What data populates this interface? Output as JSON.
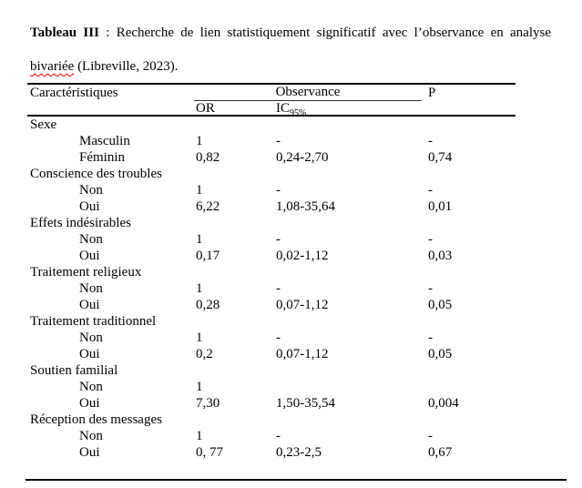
{
  "caption": {
    "bold": "Tableau III",
    "middle": " : Recherche de lien statistiquement significatif avec l’observance en analyse ",
    "misspelled": "bivariée",
    "tail": " (Libreville, 2023)."
  },
  "table": {
    "headers": {
      "characteristics": "Caractéristiques",
      "observance": "Observance",
      "or": "OR",
      "ic_base": "IC",
      "ic_sub": "95%",
      "p": "P"
    },
    "rows": [
      {
        "type": "group",
        "label": "Sexe",
        "or": "",
        "ic": "",
        "p": ""
      },
      {
        "type": "item",
        "label": "Masculin",
        "or": "1",
        "ic": "-",
        "p": "-"
      },
      {
        "type": "item",
        "label": "Féminin",
        "or": "0,82",
        "ic": "0,24-2,70",
        "p": "0,74"
      },
      {
        "type": "group",
        "label": "Conscience des troubles",
        "or": "",
        "ic": "",
        "p": ""
      },
      {
        "type": "item",
        "label": "Non",
        "or": "1",
        "ic": "-",
        "p": "-"
      },
      {
        "type": "item",
        "label": "Oui",
        "or": "6,22",
        "ic": "1,08-35,64",
        "p": "0,01"
      },
      {
        "type": "group",
        "label": "Effets indésirables",
        "or": "",
        "ic": "",
        "p": ""
      },
      {
        "type": "item",
        "label": "Non",
        "or": "1",
        "ic": "-",
        "p": "-"
      },
      {
        "type": "item",
        "label": "Oui",
        "or": "0,17",
        "ic": "0,02-1,12",
        "p": "0,03"
      },
      {
        "type": "group",
        "label": "Traitement religieux",
        "or": "",
        "ic": "",
        "p": ""
      },
      {
        "type": "item",
        "label": "Non",
        "or": "1",
        "ic": "-",
        "p": "-"
      },
      {
        "type": "item",
        "label": "Oui",
        "or": "0,28",
        "ic": "0,07-1,12",
        "p": "0,05"
      },
      {
        "type": "group",
        "label": "Traitement traditionnel",
        "or": "",
        "ic": "",
        "p": ""
      },
      {
        "type": "item",
        "label": "Non",
        "or": "1",
        "ic": "-",
        "p": "-"
      },
      {
        "type": "item",
        "label": "Oui",
        "or": "0,2",
        "ic": "0,07-1,12",
        "p": "0,05"
      },
      {
        "type": "group",
        "label": "Soutien familial",
        "or": "",
        "ic": "",
        "p": ""
      },
      {
        "type": "item",
        "label": "Non",
        "or": "1",
        "ic": "",
        "p": ""
      },
      {
        "type": "item",
        "label": "Oui",
        "or": "7,30",
        "ic": "1,50-35,54",
        "p": "0,004"
      },
      {
        "type": "group",
        "label": "Réception des messages",
        "or": "",
        "ic": "",
        "p": ""
      },
      {
        "type": "item",
        "label": "Non",
        "or": "1",
        "ic": "-",
        "p": "-"
      },
      {
        "type": "item",
        "label": "Oui",
        "or": "0, 77",
        "ic": "0,23-2,5",
        "p": "0,67"
      }
    ]
  }
}
